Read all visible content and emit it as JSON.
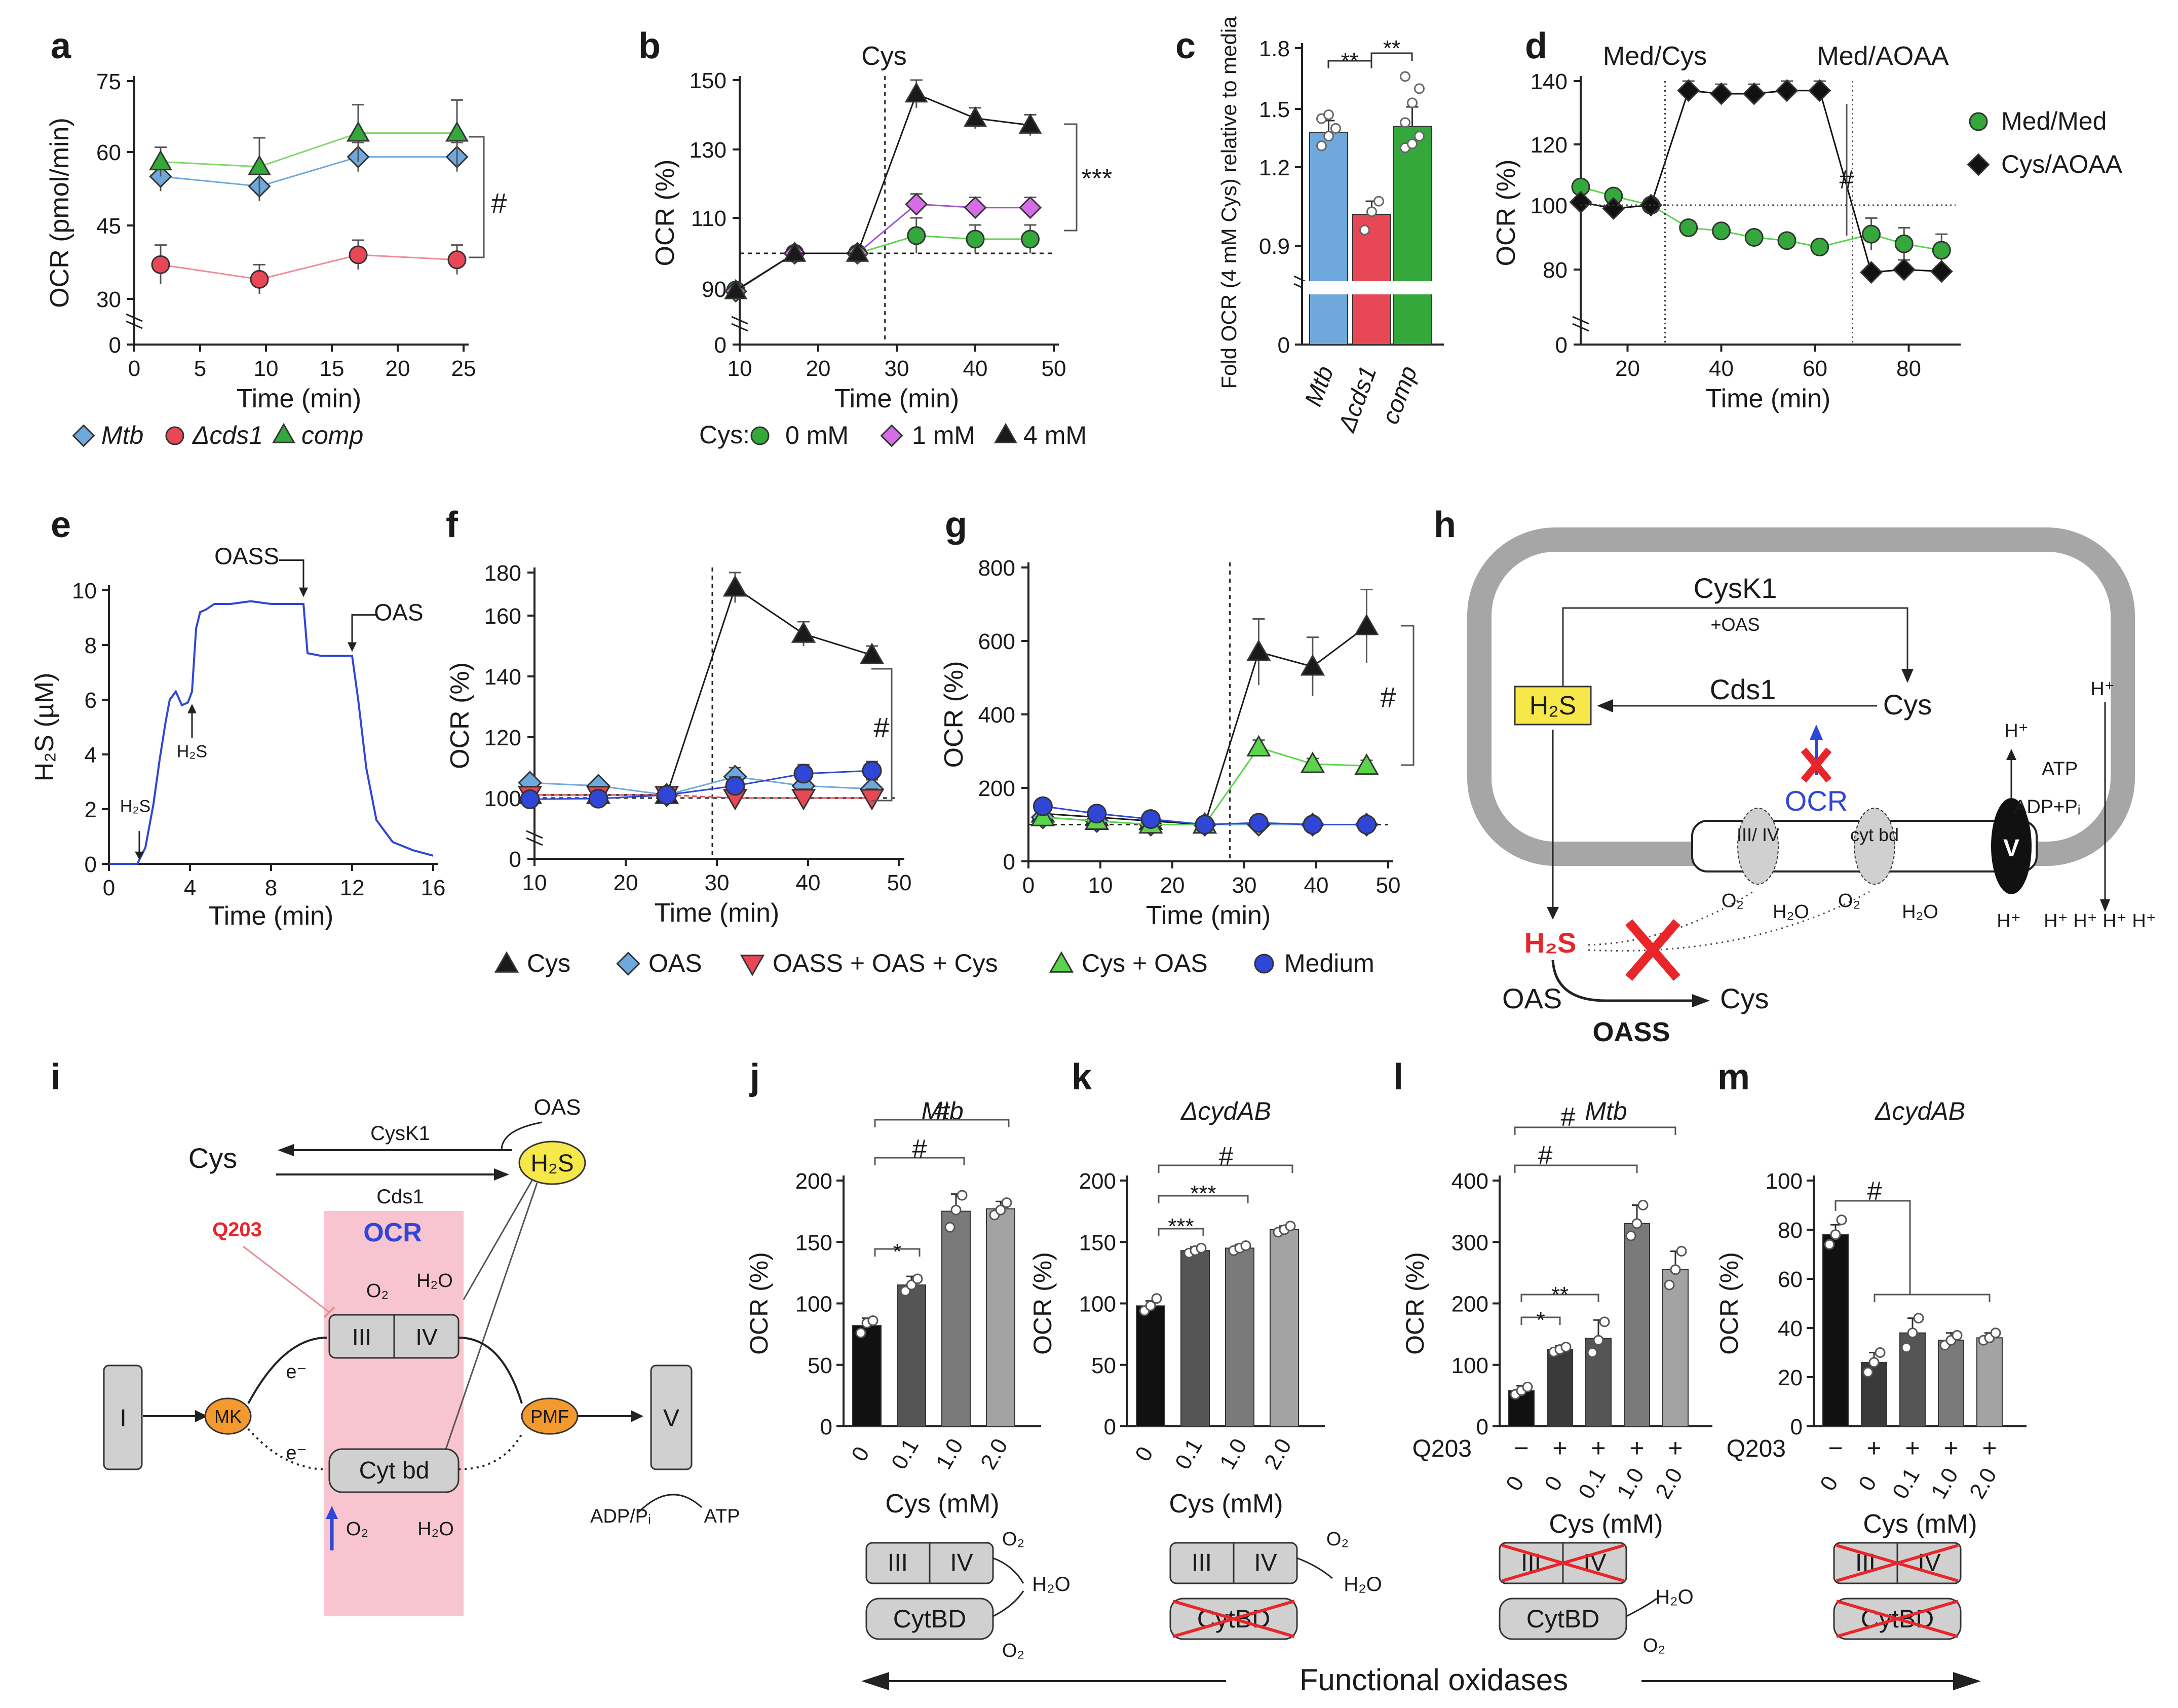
{
  "colors": {
    "mtb": "#6fa8dc",
    "cds1": "#e84855",
    "comp": "#35a83b",
    "c0": "#35a83b",
    "c1": "#a352c9",
    "c4": "#1a1a1a",
    "cys": "#1a1a1a",
    "oas": "#6fa8dc",
    "oass": "#e84855",
    "cysoas": "#5ad44a",
    "medium": "#2f46d6",
    "pink": "#f7c4d0",
    "orange": "#f29a2e",
    "yellow": "#f7e84a",
    "red": "#e8262a",
    "blue": "#2f46d6",
    "gray": "#d0d0d0",
    "frame": "#a6a6a6",
    "trace": "#2f46d6"
  },
  "panels": {
    "a": "a",
    "b": "b",
    "c": "c",
    "d": "d",
    "e": "e",
    "f": "f",
    "g": "g",
    "h": "h",
    "i": "i",
    "j": "j",
    "k": "k",
    "l": "l",
    "m": "m"
  },
  "chart_data": [
    {
      "panel": "a",
      "type": "line",
      "xlabel": "Time (min)",
      "ylabel": "OCR (pmol/min)",
      "xlim": [
        0,
        25
      ],
      "ylim": [
        0,
        75
      ],
      "xticks": [
        "0",
        "5",
        "10",
        "15",
        "20",
        "25"
      ],
      "yticks": [
        "0",
        "30",
        "45",
        "60",
        "75"
      ],
      "series": [
        {
          "name": "Mtb",
          "x": [
            2,
            9.5,
            17,
            24.5
          ],
          "y": [
            55,
            53,
            59,
            59
          ],
          "err": [
            3,
            3,
            3,
            3
          ]
        },
        {
          "name": "Δcds1",
          "x": [
            2,
            9.5,
            17,
            24.5
          ],
          "y": [
            37,
            34,
            39,
            38
          ],
          "err": [
            4,
            3,
            3,
            3
          ]
        },
        {
          "name": "comp",
          "x": [
            2,
            9.5,
            17,
            24.5
          ],
          "y": [
            58,
            57,
            64,
            64
          ],
          "err": [
            3,
            6,
            6,
            7
          ]
        }
      ],
      "annotation": "#"
    },
    {
      "panel": "b",
      "type": "line",
      "xlabel": "Time (min)",
      "ylabel": "OCR (%)",
      "xlim": [
        10,
        50
      ],
      "ylim": [
        0,
        150
      ],
      "xticks": [
        "10",
        "20",
        "30",
        "40",
        "50"
      ],
      "yticks": [
        "0",
        "90",
        "110",
        "130",
        "150"
      ],
      "marker_line_x": 28.5,
      "marker_label": "Cys",
      "baseline": 100,
      "legend_title": "Cys:",
      "series": [
        {
          "name": "0 mM",
          "x": [
            9.5,
            17,
            25,
            32.5,
            40,
            47
          ],
          "y": [
            88,
            100,
            100,
            105,
            104,
            104
          ],
          "err": [
            0,
            0,
            0,
            5,
            4,
            4
          ]
        },
        {
          "name": "1 mM",
          "x": [
            9.5,
            17,
            25,
            32.5,
            40,
            47
          ],
          "y": [
            86,
            100,
            100,
            114,
            113,
            113
          ],
          "err": [
            0,
            0,
            0,
            3,
            3,
            3
          ]
        },
        {
          "name": "4 mM",
          "x": [
            9.5,
            17,
            25,
            32.5,
            40,
            47
          ],
          "y": [
            87,
            100,
            100,
            146,
            139,
            137
          ],
          "err": [
            0,
            0,
            0,
            4,
            3,
            3
          ]
        }
      ],
      "annotation": "***"
    },
    {
      "panel": "c",
      "type": "bar",
      "ylabel": "Fold OCR (4 mM Cys) relative to media",
      "ylim": [
        0,
        1.8
      ],
      "yticks": [
        "0",
        "0.9",
        "1.2",
        "1.5",
        "1.8"
      ],
      "categories": [
        "Mtb",
        "Δcds1",
        "comp"
      ],
      "values": [
        1.38,
        1.02,
        1.41
      ],
      "err": [
        0.06,
        0.05,
        0.1
      ],
      "points": [
        [
          1.31,
          1.36,
          1.4,
          1.45,
          1.47
        ],
        [
          0.96,
          1.03,
          1.07
        ],
        [
          1.3,
          1.32,
          1.36,
          1.43,
          1.53,
          1.6,
          1.66
        ]
      ],
      "annotations": [
        "**",
        "**"
      ]
    },
    {
      "panel": "d",
      "type": "line",
      "xlabel": "Time (min)",
      "ylabel": "OCR (%)",
      "xlim": [
        10,
        90
      ],
      "ylim": [
        0,
        140
      ],
      "xticks": [
        "20",
        "40",
        "60",
        "80"
      ],
      "yticks": [
        "0",
        "80",
        "100",
        "120",
        "140"
      ],
      "marker_lines_x": [
        28,
        68
      ],
      "marker_labels": [
        "Med/Cys",
        "Med/AOAA"
      ],
      "baseline": 100,
      "series": [
        {
          "name": "Med/Med",
          "x": [
            10,
            17,
            25,
            33,
            40,
            47,
            54,
            61,
            72,
            79,
            87
          ],
          "y": [
            106,
            103,
            100,
            93,
            92,
            90,
            89,
            87,
            91,
            88,
            86
          ],
          "err": [
            0,
            0,
            0,
            2,
            2,
            2,
            2,
            2,
            5,
            5,
            5
          ]
        },
        {
          "name": "Cys/AOAA",
          "x": [
            10,
            17,
            25,
            33,
            40,
            47,
            54,
            61,
            72,
            79,
            87
          ],
          "y": [
            101,
            99,
            100,
            137,
            136,
            136,
            137,
            137,
            77,
            80,
            78
          ],
          "err": [
            0,
            0,
            0,
            3,
            3,
            3,
            3,
            3,
            3,
            3,
            3
          ]
        }
      ],
      "annotation": "#"
    },
    {
      "panel": "e",
      "type": "line",
      "xlabel": "Time (min)",
      "ylabel": "H₂S (µM)",
      "xlim": [
        0,
        16
      ],
      "ylim": [
        0,
        10
      ],
      "xticks": [
        "0",
        "4",
        "8",
        "12",
        "16"
      ],
      "yticks": [
        "0",
        "2",
        "4",
        "6",
        "8",
        "10"
      ],
      "series": [
        {
          "name": "H2S",
          "x": [
            0,
            1.4,
            1.8,
            2.2,
            2.5,
            2.8,
            3.0,
            3.3,
            3.6,
            3.9,
            4.1,
            4.3,
            4.5,
            4.8,
            5.2,
            6,
            7,
            8,
            9,
            9.6,
            9.8,
            10.5,
            11.5,
            12.0,
            12.3,
            12.7,
            13.2,
            14,
            15,
            16
          ],
          "y": [
            0,
            0,
            0.6,
            2.2,
            3.8,
            5.2,
            6.0,
            6.3,
            5.8,
            5.9,
            6.3,
            8.6,
            9.2,
            9.3,
            9.5,
            9.5,
            9.6,
            9.5,
            9.5,
            9.5,
            7.7,
            7.6,
            7.6,
            7.6,
            6,
            3.5,
            1.6,
            0.8,
            0.5,
            0.3
          ]
        }
      ],
      "annotations": [
        "H₂S",
        "H₂S",
        "OASS",
        "OAS"
      ]
    },
    {
      "panel": "f",
      "type": "line",
      "xlabel": "Time (min)",
      "ylabel": "OCR (%)",
      "xlim": [
        10,
        50
      ],
      "ylim": [
        0,
        180
      ],
      "xticks": [
        "10",
        "20",
        "30",
        "40",
        "50"
      ],
      "yticks": [
        "0",
        "100",
        "120",
        "140",
        "160",
        "180"
      ],
      "marker_line_x": 29.5,
      "baseline": 100,
      "series": [
        {
          "name": "Cys",
          "x": [
            9.5,
            17,
            24.5,
            32,
            39.5,
            47
          ],
          "y": [
            101,
            101,
            101,
            173,
            154,
            147
          ],
          "err": [
            0,
            0,
            0,
            7,
            4,
            3
          ]
        },
        {
          "name": "OAS",
          "x": [
            9.5,
            17,
            24.5,
            32,
            39.5,
            47
          ],
          "y": [
            105,
            104,
            101,
            107,
            104,
            103
          ],
          "err": [
            0,
            0,
            0,
            3,
            3,
            3
          ]
        },
        {
          "name": "OASS + OAS + Cys",
          "x": [
            9.5,
            17,
            24.5,
            32,
            39.5,
            47
          ],
          "y": [
            101,
            101,
            101,
            100,
            100,
            100
          ],
          "err": [
            0,
            0,
            0,
            3,
            3,
            3
          ]
        },
        {
          "name": "Medium",
          "x": [
            9.5,
            17,
            24.5,
            32,
            39.5,
            47
          ],
          "y": [
            98,
            99,
            101,
            104,
            108,
            109
          ],
          "err": [
            0,
            0,
            0,
            3,
            3,
            3
          ]
        }
      ],
      "annotation": "#"
    },
    {
      "panel": "g",
      "type": "line",
      "xlabel": "Time (min)",
      "ylabel": "OCR (%)",
      "xlim": [
        0,
        50
      ],
      "ylim": [
        0,
        800
      ],
      "xticks": [
        "0",
        "10",
        "20",
        "30",
        "40",
        "50"
      ],
      "yticks": [
        "0",
        "200",
        "400",
        "600",
        "800"
      ],
      "marker_line_x": 28,
      "baseline": 100,
      "series": [
        {
          "name": "Cys",
          "x": [
            2,
            9.5,
            17,
            24.5,
            32,
            39.5,
            47
          ],
          "y": [
            130,
            120,
            110,
            100,
            570,
            530,
            640
          ],
          "err": [
            0,
            0,
            0,
            0,
            90,
            80,
            100
          ]
        },
        {
          "name": "OAS",
          "x": [
            2,
            9.5,
            17,
            24.5,
            32,
            39.5,
            47
          ],
          "y": [
            120,
            110,
            100,
            100,
            100,
            100,
            100
          ],
          "err": [
            0,
            0,
            0,
            0,
            10,
            10,
            10
          ]
        },
        {
          "name": "Cys + OAS",
          "x": [
            2,
            9.5,
            17,
            24.5,
            32,
            39.5,
            47
          ],
          "y": [
            120,
            110,
            100,
            100,
            310,
            265,
            260
          ],
          "err": [
            0,
            0,
            0,
            0,
            20,
            15,
            15
          ]
        },
        {
          "name": "Medium",
          "x": [
            2,
            9.5,
            17,
            24.5,
            32,
            39.5,
            47
          ],
          "y": [
            150,
            130,
            115,
            100,
            105,
            100,
            100
          ],
          "err": [
            0,
            0,
            0,
            0,
            10,
            10,
            10
          ]
        }
      ],
      "annotation": "#"
    },
    {
      "panel": "j",
      "type": "bar",
      "title": "Mtb",
      "xlabel": "Cys (mM)",
      "ylabel": "OCR (%)",
      "ylim": [
        0,
        200
      ],
      "yticks": [
        "0",
        "50",
        "100",
        "150",
        "200"
      ],
      "categories": [
        "0",
        "0.1",
        "1.0",
        "2.0"
      ],
      "values": [
        82,
        115,
        175,
        177
      ],
      "err": [
        6,
        7,
        14,
        6
      ],
      "points": [
        [
          76,
          84,
          86
        ],
        [
          110,
          115,
          120
        ],
        [
          162,
          176,
          188
        ],
        [
          172,
          176,
          182
        ]
      ],
      "annotations": [
        "*",
        "#",
        "#"
      ]
    },
    {
      "panel": "k",
      "type": "bar",
      "title": "ΔcydAB",
      "xlabel": "Cys (mM)",
      "ylabel": "OCR (%)",
      "ylim": [
        0,
        200
      ],
      "yticks": [
        "0",
        "50",
        "100",
        "150",
        "200"
      ],
      "categories": [
        "0",
        "0.1",
        "1.0",
        "2.0"
      ],
      "values": [
        98,
        143,
        145,
        160
      ],
      "err": [
        4,
        3,
        3,
        3
      ],
      "points": [
        [
          94,
          98,
          104
        ],
        [
          141,
          143,
          145
        ],
        [
          143,
          145,
          147
        ],
        [
          158,
          160,
          163
        ]
      ],
      "annotations": [
        "***",
        "***",
        "#"
      ]
    },
    {
      "panel": "l",
      "type": "bar",
      "title": "Mtb",
      "xlabel": "Cys (mM)",
      "ylabel": "OCR (%)",
      "ylim": [
        0,
        400
      ],
      "yticks": [
        "0",
        "100",
        "200",
        "300",
        "400"
      ],
      "q203": [
        "−",
        "+",
        "+",
        "+",
        "+"
      ],
      "categories": [
        "0",
        "0",
        "0.1",
        "1.0",
        "2.0"
      ],
      "values": [
        58,
        125,
        143,
        330,
        255
      ],
      "err": [
        8,
        6,
        30,
        30,
        30
      ],
      "points": [
        [
          52,
          58,
          64
        ],
        [
          121,
          125,
          129
        ],
        [
          120,
          140,
          170
        ],
        [
          310,
          330,
          360
        ],
        [
          230,
          255,
          285
        ]
      ],
      "annotations": [
        "*",
        "**",
        "#",
        "#"
      ],
      "row_label": "Q203"
    },
    {
      "panel": "m",
      "type": "bar",
      "title": "ΔcydAB",
      "xlabel": "Cys (mM)",
      "ylabel": "OCR (%)",
      "ylim": [
        0,
        100
      ],
      "yticks": [
        "0",
        "20",
        "40",
        "60",
        "80",
        "100"
      ],
      "q203": [
        "−",
        "+",
        "+",
        "+",
        "+"
      ],
      "categories": [
        "0",
        "0",
        "0.1",
        "1.0",
        "2.0"
      ],
      "values": [
        78,
        26,
        38,
        35,
        36
      ],
      "err": [
        4,
        4,
        6,
        3,
        2
      ],
      "points": [
        [
          74,
          78,
          84
        ],
        [
          22,
          26,
          30
        ],
        [
          32,
          38,
          44
        ],
        [
          33,
          35,
          37
        ],
        [
          35,
          36,
          38
        ]
      ],
      "annotations": [
        "#"
      ],
      "row_label": "Q203"
    }
  ],
  "diagram_h": {
    "cysk1": "CysK1",
    "oas_plus": "+OAS",
    "h2s": "H₂S",
    "cys": "Cys",
    "cds1": "Cds1",
    "ocr": "OCR",
    "complex34": "III/\nIV",
    "cytbd": "cyt\nbd",
    "v": "V",
    "o2": "O₂",
    "h2o": "H₂O",
    "hplus": "H⁺",
    "atp": "ATP",
    "adp": "ADP+Pᵢ",
    "hplus_row": "H⁺ H⁺ H⁺ H⁺",
    "h2s_out": "H₂S",
    "oas": "OAS",
    "cys_out": "Cys",
    "oass": "OASS"
  },
  "diagram_i": {
    "cys": "Cys",
    "cysk1": "CysK1",
    "cds1": "Cds1",
    "oas": "OAS",
    "h2s": "H₂S",
    "q203": "Q203",
    "ocr": "OCR",
    "o2": "O₂",
    "h2o": "H₂O",
    "complex1": "I",
    "mk": "MK",
    "e1": "e⁻",
    "e2": "e⁻",
    "c3": "III",
    "c4": "IV",
    "cytbd": "Cyt bd",
    "pmf": "PMF",
    "c5": "V",
    "adp": "ADP/Pᵢ",
    "atp": "ATP"
  },
  "oxidase_boxes": {
    "iii": "III",
    "iv": "IV",
    "cytbd": "CytBD",
    "o2": "O₂",
    "h2o": "H₂O"
  },
  "bottom_caption": "Functional oxidases"
}
